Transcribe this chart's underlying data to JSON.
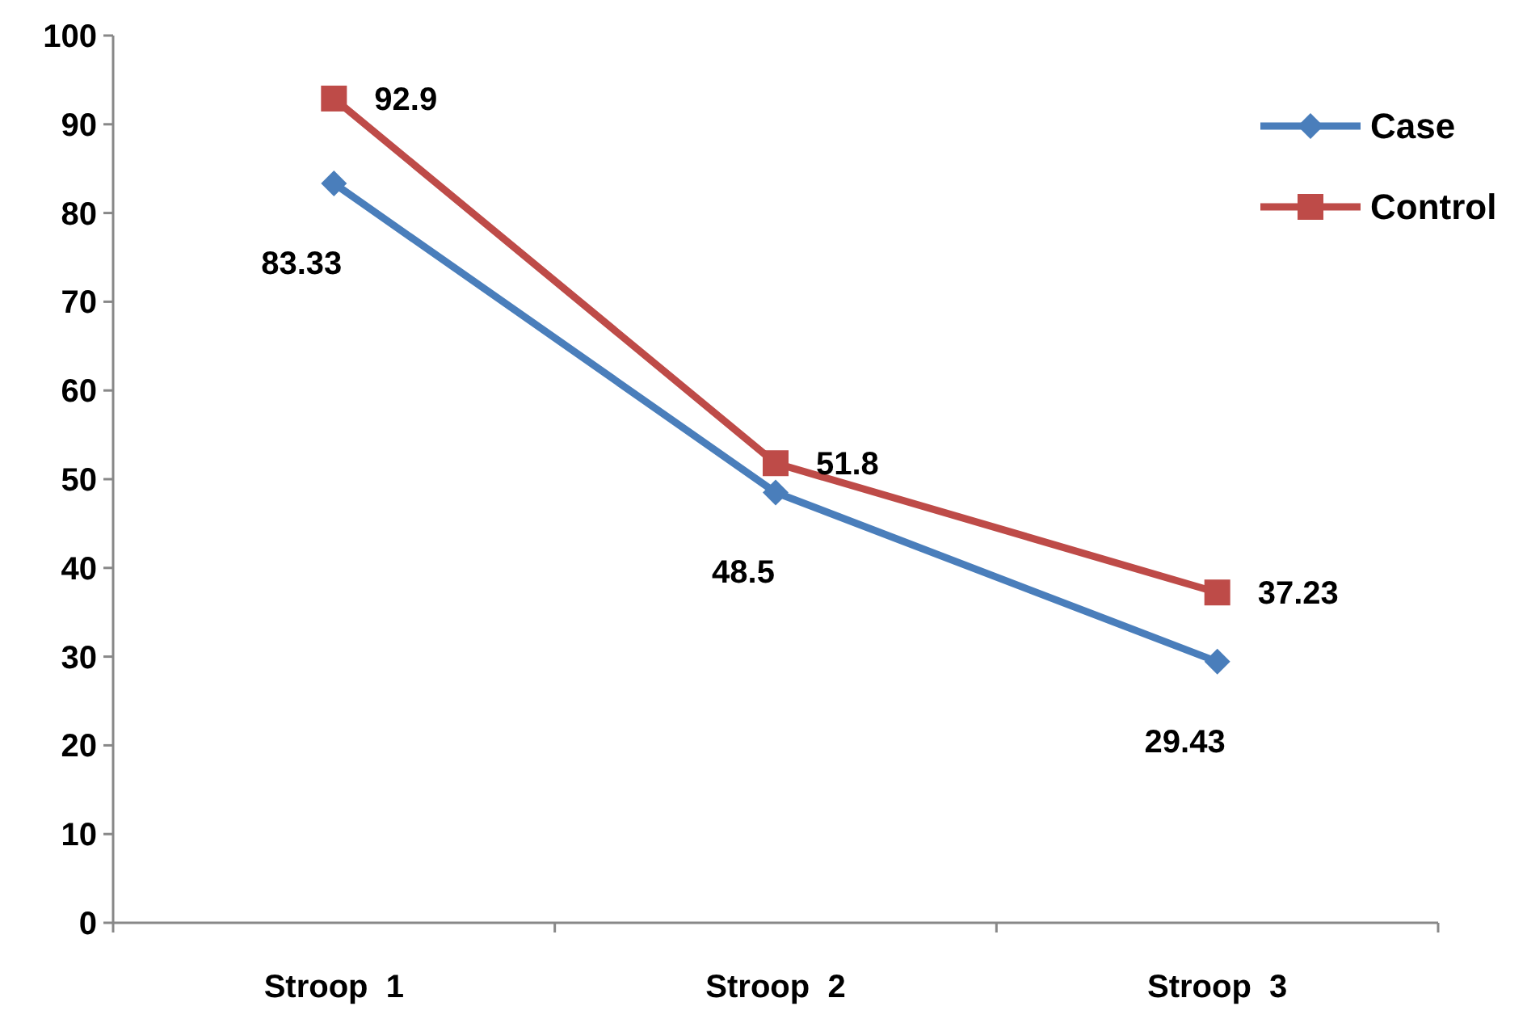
{
  "chart_data": {
    "type": "line",
    "categories": [
      "Stroop  1",
      "Stroop  2",
      "Stroop  3"
    ],
    "series": [
      {
        "name": "Case",
        "color": "#4a7ebb",
        "values": [
          83.33,
          48.5,
          29.43
        ],
        "marker": "diamond"
      },
      {
        "name": "Control",
        "color": "#be4b48",
        "values": [
          92.9,
          51.8,
          37.23
        ],
        "marker": "square"
      }
    ],
    "ylim": [
      0,
      100
    ],
    "yticks": [
      0,
      10,
      20,
      30,
      40,
      50,
      60,
      70,
      80,
      90,
      100
    ],
    "grid": false,
    "legend": "top right",
    "data_labels": true,
    "line_style": "solid"
  }
}
